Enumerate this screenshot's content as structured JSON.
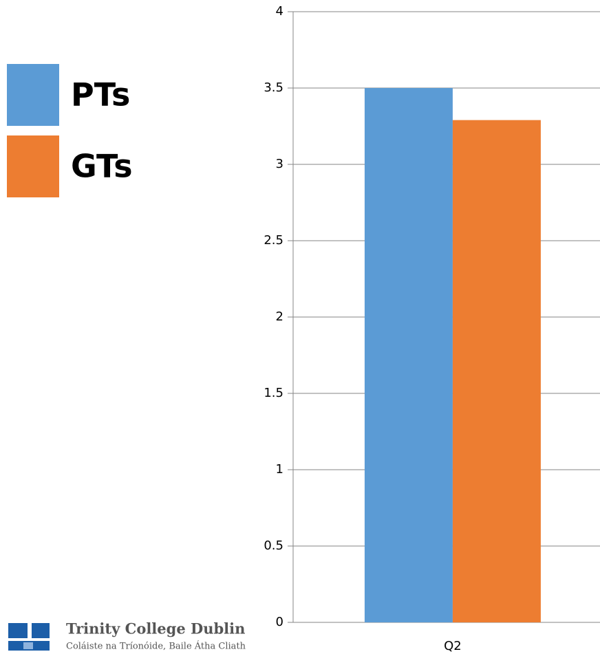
{
  "chart_data": {
    "type": "bar",
    "categories": [
      "Q2"
    ],
    "series": [
      {
        "name": "PTs",
        "color": "#5b9bd5",
        "values": [
          3.5
        ]
      },
      {
        "name": "GTs",
        "color": "#ed7d31",
        "values": [
          3.29
        ]
      }
    ],
    "ylim": [
      0,
      4
    ],
    "yticks": [
      0,
      0.5,
      1,
      1.5,
      2,
      2.5,
      3,
      3.5,
      4
    ],
    "grid": true,
    "legend": "left"
  },
  "logo": {
    "name": "Trinity College Dublin",
    "subtitle": "Coláiste na Tríonóide, Baile Átha Cliath"
  }
}
